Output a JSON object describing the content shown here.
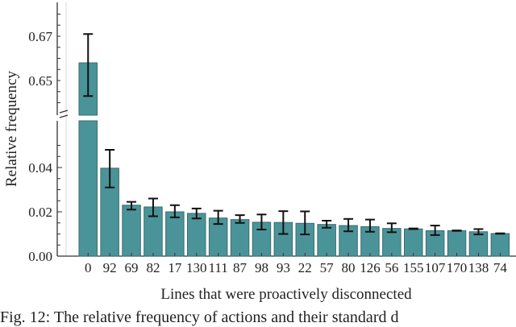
{
  "chart_data": {
    "type": "bar",
    "title": "",
    "xlabel": "Lines that were proactively disconnected",
    "ylabel": "Relative frequency",
    "categories": [
      "0",
      "92",
      "69",
      "82",
      "17",
      "130",
      "111",
      "87",
      "98",
      "93",
      "22",
      "57",
      "80",
      "126",
      "56",
      "155",
      "107",
      "170",
      "138",
      "74"
    ],
    "values": [
      0.658,
      0.0397,
      0.023,
      0.0222,
      0.02,
      0.0193,
      0.0172,
      0.0165,
      0.0153,
      0.0152,
      0.0148,
      0.0143,
      0.0138,
      0.0133,
      0.0125,
      0.0123,
      0.0115,
      0.0115,
      0.011,
      0.0102
    ],
    "error_low": [
      0.643,
      0.031,
      0.021,
      0.018,
      0.0175,
      0.017,
      0.0145,
      0.015,
      0.012,
      0.01,
      0.0098,
      0.0128,
      0.0112,
      0.011,
      0.0108,
      0.0122,
      0.0095,
      0.0114,
      0.0098,
      0.0101
    ],
    "error_high": [
      0.671,
      0.048,
      0.0245,
      0.026,
      0.023,
      0.0215,
      0.0205,
      0.0185,
      0.0188,
      0.0203,
      0.0202,
      0.016,
      0.0168,
      0.0165,
      0.0148,
      0.0125,
      0.0138,
      0.0116,
      0.0122,
      0.0103
    ],
    "broken_axis": true,
    "lower_ylim": [
      0.0,
      0.052
    ],
    "upper_ylim": [
      0.637,
      0.683
    ],
    "lower_yticks": [
      "0.00",
      "0.02",
      "0.04"
    ],
    "upper_yticks": [
      "0.65",
      "0.67"
    ],
    "bar_color": "#4a9499",
    "bar_edge_color": "#3a6b6e",
    "grid": false,
    "legend": null
  },
  "caption": "Fig. 12: The relative frequency of actions and their standard d"
}
